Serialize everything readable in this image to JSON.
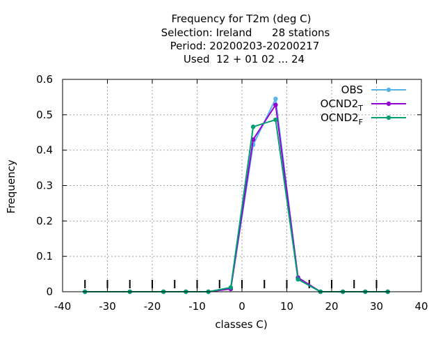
{
  "chart_data": {
    "type": "line",
    "title_lines": [
      "Frequency  for T2m (deg C)",
      "Selection: Ireland      28 stations",
      "Period: 20200203-20200217",
      "Used  12 + 01 02 ... 24"
    ],
    "xlabel": "classes C)",
    "ylabel": "Frequency",
    "xlim": [
      -40,
      40
    ],
    "ylim": [
      0,
      0.6
    ],
    "xticks": [
      -40,
      -30,
      -20,
      -10,
      0,
      10,
      20,
      30,
      40
    ],
    "yticks": [
      0,
      0.1,
      0.2,
      0.3,
      0.4,
      0.5,
      0.6
    ],
    "xtick_labels": [
      "-40",
      "-30",
      "-20",
      "-10",
      "0",
      "10",
      "20",
      "30",
      "40"
    ],
    "ytick_labels": [
      "0",
      "0.1",
      "0.2",
      "0.3",
      "0.4",
      "0.5",
      "0.6"
    ],
    "grid": true,
    "legend_position": "top-right",
    "class_marks": [
      -35,
      -30,
      -25,
      -20,
      -15,
      -10,
      -5,
      0,
      5,
      10,
      15,
      20,
      25,
      30
    ],
    "series": [
      {
        "name": "OBS",
        "sub": "",
        "color": "#56b4e9",
        "x": [
          -35,
          -25,
          -17.5,
          -12.5,
          -7.5,
          -2.5,
          2.5,
          7.5,
          12.5,
          17.5,
          22.5,
          27.5,
          32.5
        ],
        "y": [
          0,
          0,
          0,
          0,
          0,
          0.008,
          0.415,
          0.545,
          0.04,
          0,
          0,
          0,
          0
        ]
      },
      {
        "name": "OCND2",
        "sub": "T",
        "color": "#9400d3",
        "x": [
          -35,
          -25,
          -17.5,
          -12.5,
          -7.5,
          -2.5,
          2.5,
          7.5,
          12.5,
          17.5,
          22.5,
          27.5,
          32.5
        ],
        "y": [
          0,
          0,
          0,
          0,
          0,
          0.008,
          0.43,
          0.528,
          0.04,
          0,
          0,
          0,
          0
        ]
      },
      {
        "name": "OCND2",
        "sub": "F",
        "color": "#009e73",
        "x": [
          -35,
          -25,
          -17.5,
          -12.5,
          -7.5,
          -2.5,
          2.5,
          7.5,
          12.5,
          17.5,
          22.5,
          27.5,
          32.5
        ],
        "y": [
          0,
          0,
          0,
          0,
          0,
          0.012,
          0.466,
          0.486,
          0.035,
          0,
          0,
          0,
          0
        ]
      }
    ]
  }
}
